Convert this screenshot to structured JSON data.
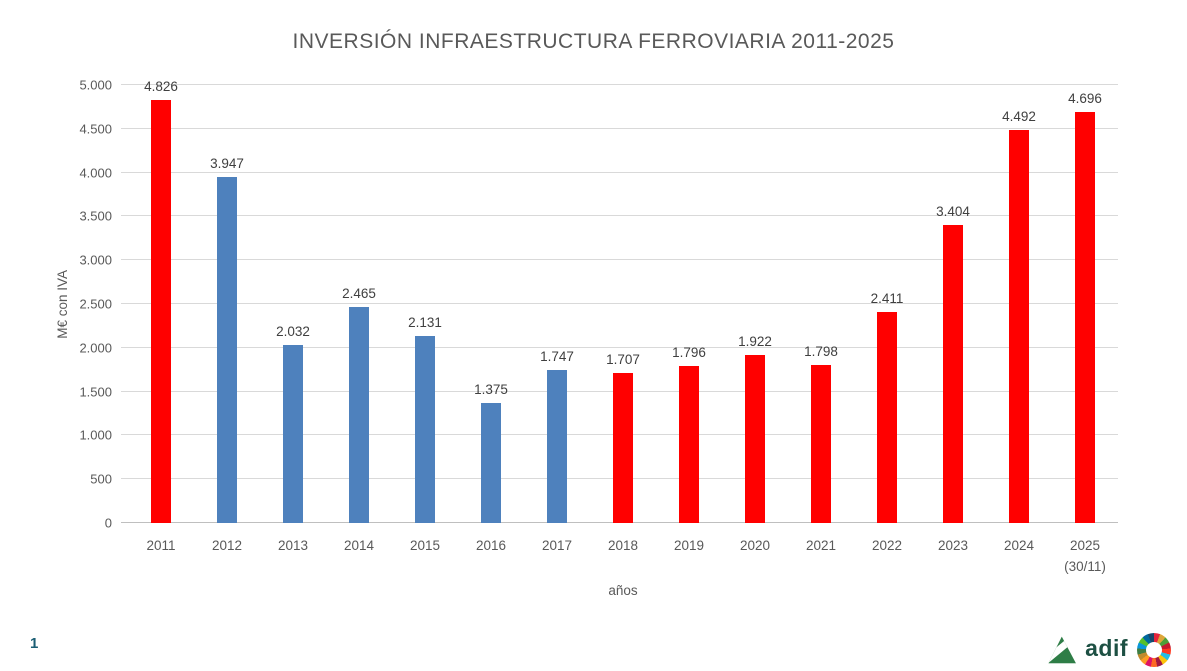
{
  "page": {
    "slide_number": "1"
  },
  "footer": {
    "adif_logo_text": "adif",
    "adif_arrow_color": "#2e7d46",
    "adif_text_color": "#1d5043",
    "sdg_colors": [
      "#E5243B",
      "#DDA63A",
      "#4C9F38",
      "#C5192D",
      "#FF3A21",
      "#26BDE2",
      "#FCC30B",
      "#A21942",
      "#FD6925",
      "#DD1367",
      "#FD9D24",
      "#BF8B2E",
      "#3F7E44",
      "#0A97D9",
      "#56C02B",
      "#00689D",
      "#19486A"
    ]
  },
  "chart_data": {
    "type": "bar",
    "title": "INVERSIÓN INFRAESTRUCTURA FERROVIARIA 2011-2025",
    "xlabel": "años",
    "ylabel": "M€ con IVA",
    "ylim": [
      0,
      5000
    ],
    "grid": true,
    "legend": false,
    "yticks": [
      0,
      500,
      1000,
      1500,
      2000,
      2500,
      3000,
      3500,
      4000,
      4500,
      5000
    ],
    "ytick_labels": [
      "0",
      "500",
      "1.000",
      "1.500",
      "2.000",
      "2.500",
      "3.000",
      "3.500",
      "4.000",
      "4.500",
      "5.000"
    ],
    "categories": [
      "2011",
      "2012",
      "2013",
      "2014",
      "2015",
      "2016",
      "2017",
      "2018",
      "2019",
      "2020",
      "2021",
      "2022",
      "2023",
      "2024",
      "2025"
    ],
    "category_sublabels": [
      "",
      "",
      "",
      "",
      "",
      "",
      "",
      "",
      "",
      "",
      "",
      "",
      "",
      "",
      "(30/11)"
    ],
    "values": [
      4826,
      3947,
      2032,
      2465,
      2131,
      1375,
      1747,
      1707,
      1796,
      1922,
      1798,
      2411,
      3404,
      4492,
      4696
    ],
    "value_labels": [
      "4.826",
      "3.947",
      "2.032",
      "2.465",
      "2.131",
      "1.375",
      "1.747",
      "1.707",
      "1.796",
      "1.922",
      "1.798",
      "2.411",
      "3.404",
      "4.492",
      "4.696"
    ],
    "bar_color_keys": [
      "red",
      "blue",
      "blue",
      "blue",
      "blue",
      "blue",
      "blue",
      "red",
      "red",
      "red",
      "red",
      "red",
      "red",
      "red",
      "red"
    ],
    "palette": {
      "red": "#FF0000",
      "blue": "#4E81BD"
    }
  }
}
